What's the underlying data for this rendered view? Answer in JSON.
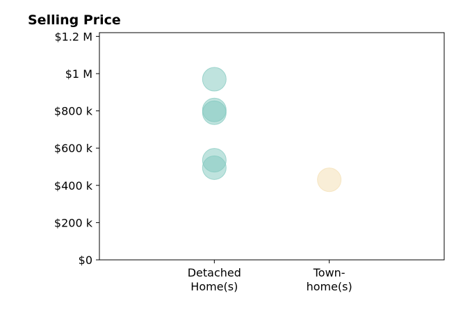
{
  "chart_data": {
    "type": "scatter",
    "title": "Selling Price",
    "categories": [
      "Detached Home(s)",
      "Town-home(s)"
    ],
    "category_tick_lines": [
      [
        "Detached",
        "Home(s)"
      ],
      [
        "Town-",
        "home(s)"
      ]
    ],
    "y_ticks": [
      {
        "value": 0,
        "label": "$0"
      },
      {
        "value": 200000,
        "label": "$200 k"
      },
      {
        "value": 400000,
        "label": "$400 k"
      },
      {
        "value": 600000,
        "label": "$600 k"
      },
      {
        "value": 800000,
        "label": "$800 k"
      },
      {
        "value": 1000000,
        "label": "$1 M"
      },
      {
        "value": 1200000,
        "label": "$1.2 M"
      }
    ],
    "ylim": [
      0,
      1220000
    ],
    "xlim": [
      -1,
      2
    ],
    "grid": false,
    "series": [
      {
        "category": "Detached Home(s)",
        "color": "#7fc7bd",
        "values": [
          970000,
          805000,
          790000,
          535000,
          495000
        ]
      },
      {
        "category": "Town-home(s)",
        "color": "#f3deb0",
        "values": [
          430000
        ]
      }
    ]
  }
}
